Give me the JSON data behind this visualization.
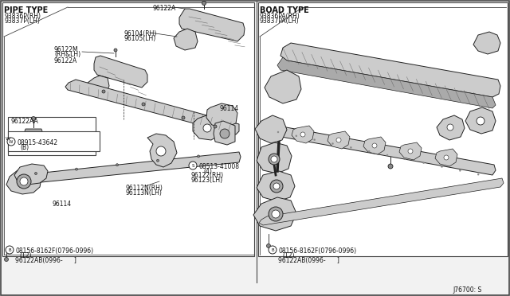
{
  "bg_color": "#f2f2f2",
  "panel_bg": "#ffffff",
  "border_color": "#444444",
  "line_color": "#222222",
  "text_color": "#111111",
  "light_gray": "#cccccc",
  "mid_gray": "#aaaaaa",
  "dark_gray": "#888888",
  "hatch_color": "#555555",
  "title_left": "PIPE TYPE",
  "title_right": "BOAD TYPE",
  "part_left1": "93836P(RH)",
  "part_left2": "93837P(LH)",
  "part_right1": "93836PA(RH)",
  "part_right2": "93837PA(LH)",
  "diagram_id": "J76700: S",
  "figsize": [
    6.4,
    3.72
  ],
  "dpi": 100
}
